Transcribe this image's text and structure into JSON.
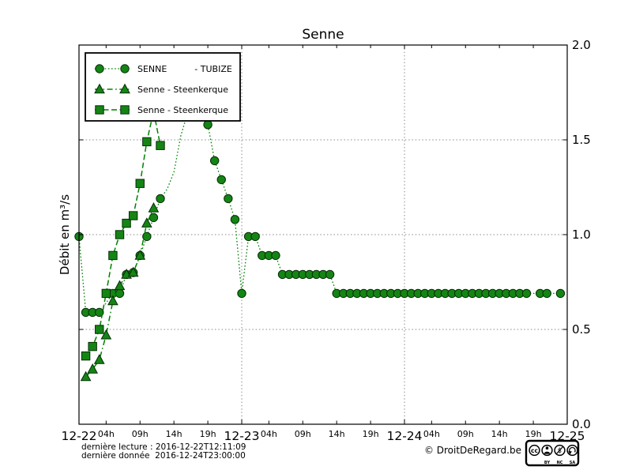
{
  "title": "Senne",
  "y_axis": {
    "label": "Débit en m³/s"
  },
  "legend": {
    "entries": [
      {
        "label": "SENNE          - TUBIZE",
        "marker": "circle"
      },
      {
        "label": "Senne - Steenkerque",
        "marker": "triangle"
      },
      {
        "label": "Senne - Steenkerque",
        "marker": "square"
      }
    ]
  },
  "footer": {
    "last_reading": "dernière lecture : 2016-12-22T12:11:09",
    "last_data": "dernière donnée  2016-12-24T23:00:00",
    "copyright": "© DroitDeRegard.be",
    "license": {
      "logo": "cc",
      "parts": [
        "BY",
        "NC",
        "SA"
      ]
    }
  },
  "colors": {
    "line": "#008000",
    "marker_fill": "#148514",
    "marker_edge": "#062d06",
    "grid": "#8a8a8a",
    "text": "#000000"
  },
  "chart_data": {
    "type": "line",
    "title": "Senne",
    "xlabel": "",
    "ylabel": "Débit en m³/s",
    "ylim": [
      0,
      2.0
    ],
    "xlim": [
      0,
      72
    ],
    "x_unit": "hours since 2016-12-22 00:00",
    "grid": {
      "h_values": [
        0.5,
        1.0,
        1.5
      ],
      "v_hours": [
        24,
        48
      ]
    },
    "legend_position": "upper left",
    "y_ticks": [
      {
        "label": "0.0",
        "v": 0.0
      },
      {
        "label": "0.5",
        "v": 0.5
      },
      {
        "label": "1.0",
        "v": 1.0
      },
      {
        "label": "1.5",
        "v": 1.5
      },
      {
        "label": "2.0",
        "v": 2.0
      }
    ],
    "x_day_ticks": [
      {
        "label": "12-22",
        "t": 0
      },
      {
        "label": "12-23",
        "t": 24
      },
      {
        "label": "12-24",
        "t": 48
      },
      {
        "label": "12-25",
        "t": 72
      }
    ],
    "x_hour_tick_offsets": [
      {
        "label": "04h",
        "h": 4
      },
      {
        "label": "09h",
        "h": 9
      },
      {
        "label": "14h",
        "h": 14
      },
      {
        "label": "19h",
        "h": 19
      }
    ],
    "series": [
      {
        "name": "SENNE - TUBIZE",
        "marker": "circle",
        "line_style": "dotted",
        "no_marker_t": [
          13,
          14,
          15,
          16,
          17,
          18
        ],
        "points": [
          [
            0,
            0.99
          ],
          [
            1,
            0.59
          ],
          [
            2,
            0.59
          ],
          [
            3,
            0.59
          ],
          [
            5,
            0.69
          ],
          [
            6,
            0.69
          ],
          [
            7,
            0.79
          ],
          [
            8,
            0.8
          ],
          [
            9,
            0.89
          ],
          [
            10,
            0.99
          ],
          [
            11,
            1.09
          ],
          [
            12,
            1.19
          ],
          [
            13,
            1.24
          ],
          [
            14,
            1.33
          ],
          [
            15,
            1.52
          ],
          [
            16,
            1.64
          ],
          [
            17,
            1.68
          ],
          [
            18,
            1.66
          ],
          [
            19,
            1.58
          ],
          [
            20,
            1.39
          ],
          [
            21,
            1.29
          ],
          [
            22,
            1.19
          ],
          [
            23,
            1.08
          ],
          [
            24,
            0.69
          ],
          [
            25,
            0.99
          ],
          [
            26,
            0.99
          ],
          [
            27,
            0.89
          ],
          [
            28,
            0.89
          ],
          [
            29,
            0.89
          ],
          [
            30,
            0.79
          ],
          [
            31,
            0.79
          ],
          [
            32,
            0.79
          ],
          [
            33,
            0.79
          ],
          [
            34,
            0.79
          ],
          [
            35,
            0.79
          ],
          [
            36,
            0.79
          ],
          [
            37,
            0.79
          ],
          [
            38,
            0.69
          ],
          [
            39,
            0.69
          ],
          [
            40,
            0.69
          ],
          [
            41,
            0.69
          ],
          [
            42,
            0.69
          ],
          [
            43,
            0.69
          ],
          [
            44,
            0.69
          ],
          [
            45,
            0.69
          ],
          [
            46,
            0.69
          ],
          [
            47,
            0.69
          ],
          [
            48,
            0.69
          ],
          [
            49,
            0.69
          ],
          [
            50,
            0.69
          ],
          [
            51,
            0.69
          ],
          [
            52,
            0.69
          ],
          [
            53,
            0.69
          ],
          [
            54,
            0.69
          ],
          [
            55,
            0.69
          ],
          [
            56,
            0.69
          ],
          [
            57,
            0.69
          ],
          [
            58,
            0.69
          ],
          [
            59,
            0.69
          ],
          [
            60,
            0.69
          ],
          [
            61,
            0.69
          ],
          [
            62,
            0.69
          ],
          [
            63,
            0.69
          ],
          [
            64,
            0.69
          ],
          [
            65,
            0.69
          ],
          [
            66,
            0.69
          ],
          [
            68,
            0.69
          ],
          [
            69,
            0.69
          ],
          [
            71,
            0.69
          ]
        ]
      },
      {
        "name": "Senne - Steenkerque",
        "marker": "triangle",
        "line_style": "dashdot",
        "points": [
          [
            1,
            0.25
          ],
          [
            2,
            0.29
          ],
          [
            3,
            0.34
          ],
          [
            4,
            0.47
          ],
          [
            5,
            0.65
          ],
          [
            6,
            0.73
          ],
          [
            7,
            0.79
          ],
          [
            8,
            0.8
          ],
          [
            9,
            0.89
          ],
          [
            10,
            1.06
          ],
          [
            11,
            1.14
          ]
        ]
      },
      {
        "name": "Senne - Steenkerque",
        "marker": "square",
        "line_style": "dashed",
        "points": [
          [
            1,
            0.36
          ],
          [
            2,
            0.41
          ],
          [
            3,
            0.5
          ],
          [
            4,
            0.69
          ],
          [
            5,
            0.89
          ],
          [
            6,
            1.0
          ],
          [
            7,
            1.06
          ],
          [
            8,
            1.1
          ],
          [
            9,
            1.27
          ],
          [
            10,
            1.49
          ],
          [
            11,
            1.65
          ],
          [
            12,
            1.47
          ]
        ]
      }
    ]
  }
}
